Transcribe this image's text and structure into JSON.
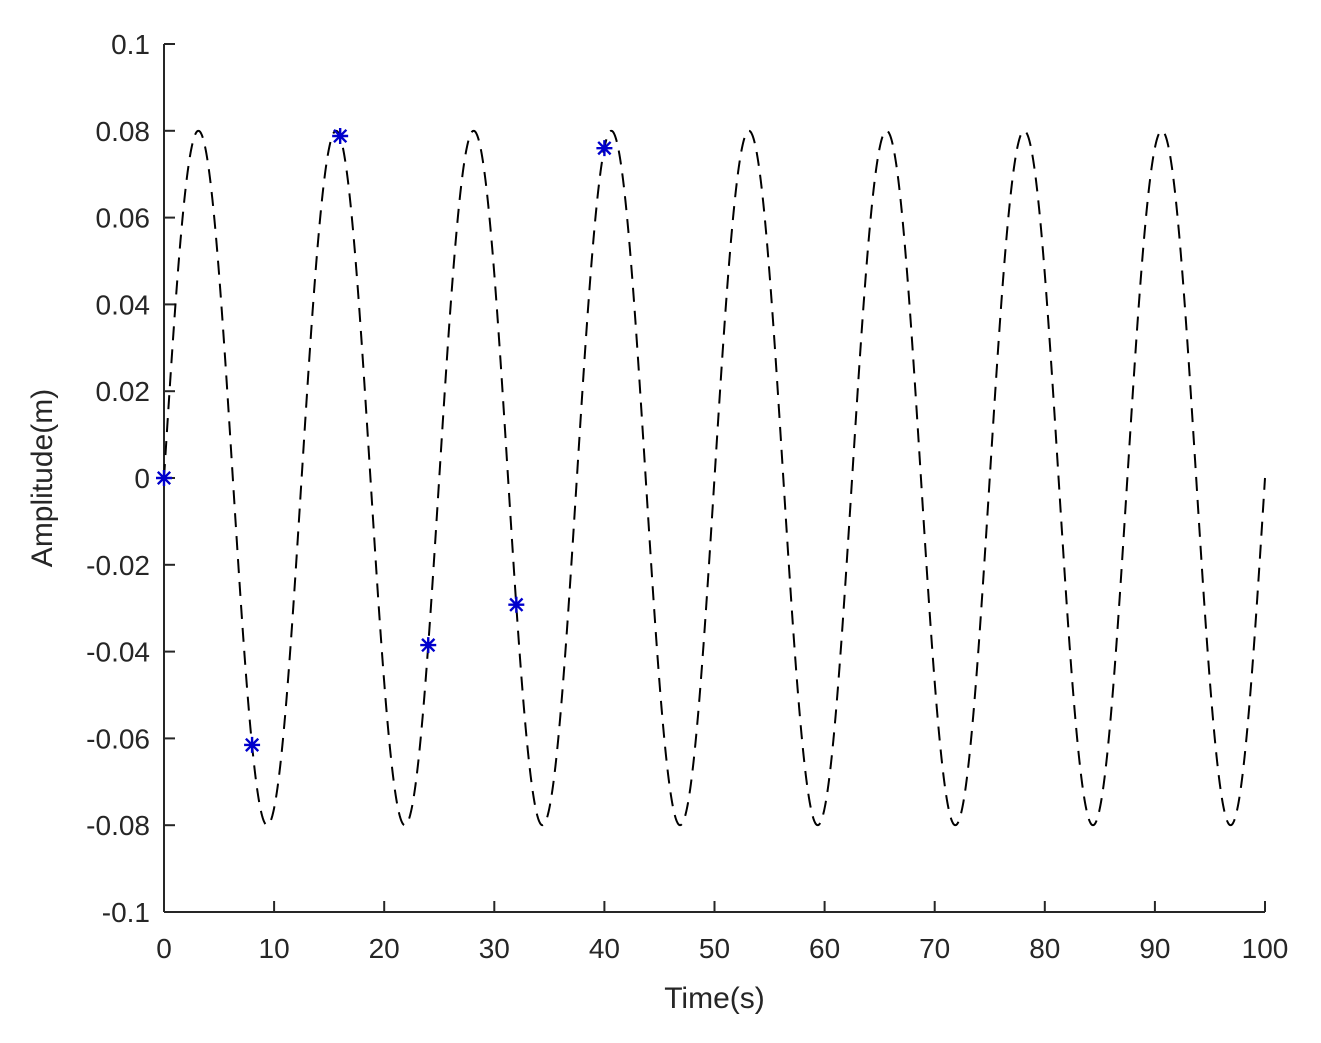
{
  "chart_data": {
    "type": "line",
    "xlabel": "Time(s)",
    "ylabel": "Amplitude(m)",
    "xlim": [
      0,
      100
    ],
    "ylim": [
      -0.1,
      0.1
    ],
    "xticks": [
      "0",
      "10",
      "20",
      "30",
      "40",
      "50",
      "60",
      "70",
      "80",
      "90",
      "100"
    ],
    "yticks": [
      "-0.1",
      "-0.08",
      "-0.06",
      "-0.04",
      "-0.02",
      "0",
      "0.02",
      "0.04",
      "0.06",
      "0.08",
      "0.1"
    ],
    "grid": false,
    "series": [
      {
        "style": "dashed-line",
        "color": "#000000",
        "function": "0.08*sin(2*pi*t/12.5)",
        "amplitude": 0.08,
        "period": 12.5,
        "x_range": [
          0,
          100
        ]
      },
      {
        "style": "asterisk-markers",
        "color": "#0000CC",
        "x": [
          0,
          8,
          16,
          24,
          32,
          40
        ],
        "y": [
          0.0,
          -0.0615,
          0.0788,
          -0.0385,
          -0.0292,
          0.076
        ]
      }
    ]
  }
}
